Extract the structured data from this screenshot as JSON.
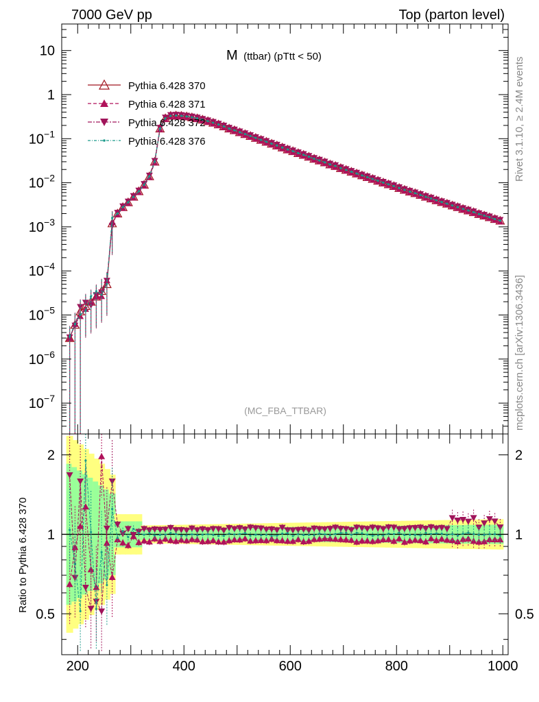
{
  "header": {
    "left": "7000 GeV pp",
    "right": "Top (parton level)"
  },
  "side_labels": {
    "rivet": "Rivet 3.1.10, ≥ 2.4M events",
    "mcplots": "mcplots.cern.ch [arXiv:1306.3436]"
  },
  "annotation": "(MC_FBA_TTBAR)",
  "colors": {
    "ref": "#a0141e",
    "s371": "#b0125a",
    "s372": "#a0145a",
    "s376": "#1a9a8a",
    "band_yellow": "#ffff80",
    "band_green": "#99ff99"
  },
  "chart_data": [
    {
      "type": "line",
      "title_main": "M",
      "title_sub": "(ttbar) (pTtt < 50)",
      "xlim": [
        170,
        1010
      ],
      "ylim": [
        2e-08,
        40
      ],
      "yscale": "log",
      "ytick_labels": [
        {
          "v": 1e-07,
          "base": "10",
          "exp": "−7"
        },
        {
          "v": 1e-06,
          "base": "10",
          "exp": "−6"
        },
        {
          "v": 1e-05,
          "base": "10",
          "exp": "−5"
        },
        {
          "v": 0.0001,
          "base": "10",
          "exp": "−4"
        },
        {
          "v": 0.001,
          "base": "10",
          "exp": "−3"
        },
        {
          "v": 0.01,
          "base": "10",
          "exp": "−2"
        },
        {
          "v": 0.1,
          "base": "10",
          "exp": "−1"
        },
        {
          "v": 1,
          "base": "1",
          "exp": ""
        },
        {
          "v": 10,
          "base": "10",
          "exp": ""
        }
      ],
      "legend_placement": "top-left",
      "series": [
        {
          "name": "Pythia 6.428 370",
          "marker": "triangle-up-open",
          "line": "solid",
          "scale": 1.0
        },
        {
          "name": "Pythia 6.428 371",
          "marker": "triangle-up",
          "line": "dashed",
          "scale": 0.95
        },
        {
          "name": "Pythia 6.428 372",
          "marker": "triangle-down",
          "line": "dashdot",
          "scale": 1.05
        },
        {
          "name": "Pythia 6.428 376",
          "marker": "dot",
          "line": "dashdot-fine",
          "scale": 1.0
        }
      ],
      "x": [
        185,
        195,
        205,
        215,
        225,
        235,
        245,
        255,
        265,
        275,
        285,
        295,
        305,
        315,
        325,
        335,
        345,
        355,
        365,
        375,
        385,
        395,
        405,
        415,
        425,
        435,
        445,
        455,
        465,
        475,
        485,
        495,
        505,
        515,
        525,
        535,
        545,
        555,
        565,
        575,
        585,
        595,
        605,
        615,
        625,
        635,
        645,
        655,
        665,
        675,
        685,
        695,
        705,
        715,
        725,
        735,
        745,
        755,
        765,
        775,
        785,
        795,
        805,
        815,
        825,
        835,
        845,
        855,
        865,
        875,
        885,
        895,
        905,
        915,
        925,
        935,
        945,
        955,
        965,
        975,
        985,
        995
      ],
      "y": [
        3e-06,
        6e-06,
        1.2e-05,
        1.6e-05,
        2e-05,
        2.6e-05,
        3.5e-05,
        5e-05,
        0.0012,
        0.002,
        0.0028,
        0.0036,
        0.0048,
        0.0064,
        0.009,
        0.014,
        0.03,
        0.17,
        0.29,
        0.33,
        0.335,
        0.33,
        0.32,
        0.305,
        0.29,
        0.27,
        0.25,
        0.23,
        0.21,
        0.19,
        0.17,
        0.155,
        0.14,
        0.127,
        0.115,
        0.104,
        0.094,
        0.085,
        0.077,
        0.07,
        0.063,
        0.057,
        0.052,
        0.047,
        0.043,
        0.039,
        0.035,
        0.032,
        0.029,
        0.026,
        0.024,
        0.0215,
        0.0196,
        0.0178,
        0.0162,
        0.0147,
        0.0134,
        0.0122,
        0.0111,
        0.0101,
        0.0092,
        0.0084,
        0.0076,
        0.0069,
        0.0063,
        0.0058,
        0.0053,
        0.0048,
        0.0044,
        0.004,
        0.00365,
        0.00335,
        0.00305,
        0.0028,
        0.00255,
        0.00235,
        0.00215,
        0.00195,
        0.0018,
        0.00165,
        0.0015,
        0.00138
      ]
    },
    {
      "type": "line",
      "ylabel": "Ratio to Pythia 6.428 370",
      "xlim": [
        170,
        1010
      ],
      "ylim": [
        0.35,
        2.4
      ],
      "yscale": "log",
      "xtick_labels": [
        200,
        400,
        600,
        800,
        1000
      ],
      "ytick_labels": [
        0.5,
        1,
        2
      ],
      "series": [
        {
          "name": "Pythia 6.428 371",
          "values_mean": 0.95
        },
        {
          "name": "Pythia 6.428 372",
          "values_mean": 1.05
        },
        {
          "name": "Pythia 6.428 376",
          "values_mean": 1.0
        }
      ]
    }
  ]
}
